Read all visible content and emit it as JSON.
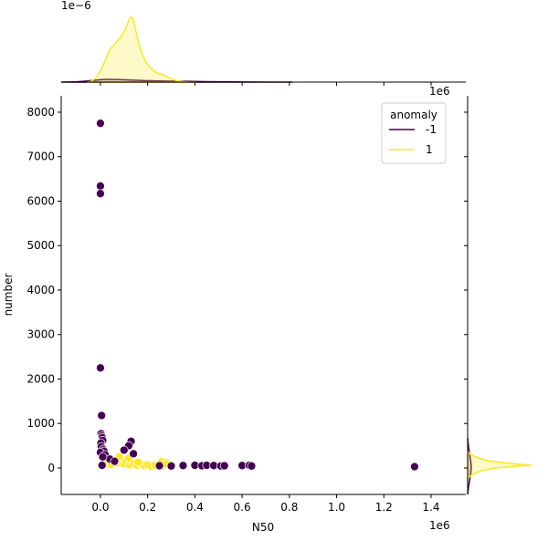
{
  "chart_data": {
    "type": "scatter",
    "xlabel": "N50",
    "ylabel": "number",
    "x_offset_label": "1e6",
    "top_offset_label": "1e−6",
    "right_offset_label": "1e6",
    "xlim": [
      -166000,
      1547000
    ],
    "ylim": [
      -595,
      8369
    ],
    "xticks": [
      {
        "value": 0,
        "label": "0.0"
      },
      {
        "value": 200000,
        "label": "0.2"
      },
      {
        "value": 400000,
        "label": "0.4"
      },
      {
        "value": 600000,
        "label": "0.6"
      },
      {
        "value": 800000,
        "label": "0.8"
      },
      {
        "value": 1000000,
        "label": "1.0"
      },
      {
        "value": 1200000,
        "label": "1.2"
      },
      {
        "value": 1400000,
        "label": "1.4"
      }
    ],
    "yticks": [
      0,
      1000,
      2000,
      3000,
      4000,
      5000,
      6000,
      7000,
      8000
    ],
    "legend_title": "anomaly",
    "legend_position": "upper right",
    "series": [
      {
        "name": "1",
        "color": "#fde725",
        "x": [
          30000,
          45000,
          60000,
          75000,
          90000,
          100000,
          110000,
          125000,
          140000,
          155000,
          170000,
          185000,
          200000,
          215000,
          230000,
          250000,
          265000,
          280000,
          295000,
          80000,
          120000,
          160000,
          260000,
          275000
        ],
        "y": [
          100,
          80,
          150,
          120,
          200,
          90,
          160,
          70,
          110,
          60,
          90,
          50,
          70,
          40,
          60,
          80,
          50,
          120,
          60,
          250,
          220,
          130,
          140,
          90
        ]
      },
      {
        "name": "-1",
        "color": "#440154",
        "x": [
          0,
          0,
          0,
          0,
          5000,
          3000,
          6000,
          8000,
          10000,
          2000,
          4000,
          12000,
          15000,
          0,
          7000,
          130000,
          120000,
          100000,
          140000,
          20000,
          40000,
          60000,
          10000,
          250000,
          300000,
          350000,
          400000,
          430000,
          450000,
          480000,
          510000,
          525000,
          600000,
          630000,
          640000,
          1330000
        ],
        "y": [
          7750,
          6340,
          6170,
          2250,
          1180,
          770,
          720,
          680,
          620,
          560,
          480,
          420,
          380,
          350,
          60,
          600,
          500,
          400,
          320,
          300,
          200,
          150,
          250,
          50,
          45,
          55,
          60,
          50,
          60,
          55,
          45,
          50,
          55,
          60,
          45,
          30
        ]
      }
    ]
  }
}
